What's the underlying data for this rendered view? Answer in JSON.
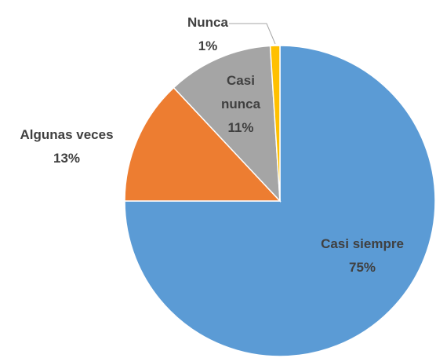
{
  "chart_data": {
    "type": "pie",
    "categories": [
      "Casi siempre",
      "Algunas veces",
      "Casi nunca",
      "Nunca"
    ],
    "values": [
      75,
      13,
      11,
      1
    ],
    "value_labels": [
      "75%",
      "13%",
      "11%",
      "1%"
    ],
    "colors": [
      "#5b9bd5",
      "#ed7d31",
      "#a5a5a5",
      "#ffc000"
    ]
  }
}
